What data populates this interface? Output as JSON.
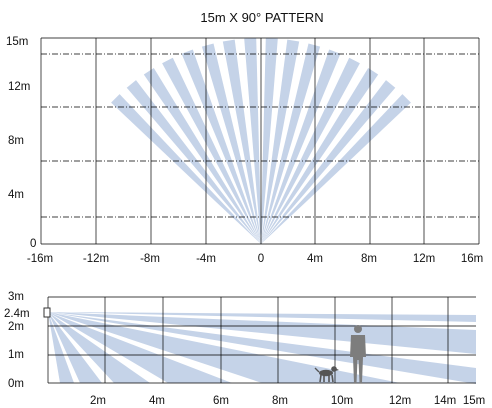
{
  "title": "15m X 90° PATTERN",
  "colors": {
    "beam": "#c5d3e8",
    "grid": "#000000",
    "dashed": "#000000",
    "person": "#7d7d7d"
  },
  "top_view": {
    "y_ticks": [
      "15m",
      "12m",
      "8m",
      "4m",
      "0"
    ],
    "x_ticks": [
      "-16m",
      "-12m",
      "-8m",
      "-4m",
      "0",
      "4m",
      "8m",
      "12m",
      "16m"
    ],
    "pattern": {
      "coverage_deg": 90,
      "range_m": 15,
      "zones": 8,
      "beams_per_zone": 2
    }
  },
  "side_view": {
    "y_ticks": [
      "3m",
      "2.4m",
      "2m",
      "1m",
      "0m"
    ],
    "x_ticks": [
      "2m",
      "4m",
      "6m",
      "8m",
      "10m",
      "12m",
      "14m",
      "15m"
    ],
    "mount_height_m": 2.4,
    "icons": [
      "person-icon",
      "dog-icon"
    ]
  }
}
